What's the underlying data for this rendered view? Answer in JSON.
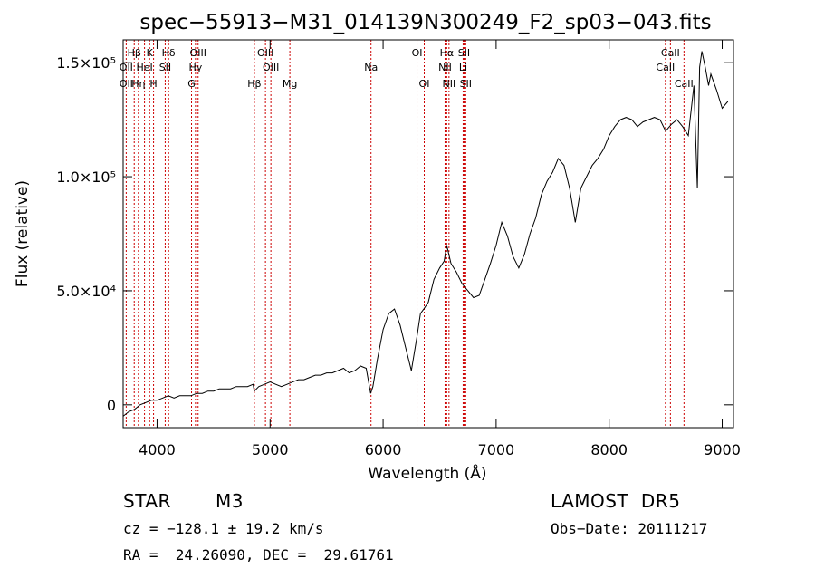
{
  "chart_data": {
    "type": "line",
    "title": "spec−55913−M31_014139N300249_F2_sp03−043.fits",
    "xlabel": "Wavelength (Å)",
    "ylabel": "Flux (relative)",
    "xlim": [
      3700,
      9100
    ],
    "ylim": [
      -10000,
      160000
    ],
    "x_ticks": [
      4000,
      5000,
      6000,
      7000,
      8000,
      9000
    ],
    "x_tick_labels": [
      "4000",
      "5000",
      "6000",
      "7000",
      "8000",
      "9000"
    ],
    "y_ticks": [
      0,
      50000,
      100000,
      150000
    ],
    "y_tick_labels": [
      "0",
      "5.0×10⁴",
      "1.0×10⁵",
      "1.5×10⁵"
    ],
    "grid": false,
    "line_color": "#000000",
    "marker_color": "#cc0000",
    "series": [
      {
        "values_x": [
          3700,
          3750,
          3800,
          3850,
          3900,
          3950,
          4000,
          4050,
          4100,
          4150,
          4200,
          4250,
          4300,
          4350,
          4400,
          4450,
          4500,
          4550,
          4600,
          4650,
          4700,
          4750,
          4800,
          4850,
          4860,
          4900,
          4950,
          5000,
          5050,
          5100,
          5150,
          5200,
          5250,
          5300,
          5350,
          5400,
          5450,
          5500,
          5550,
          5600,
          5650,
          5700,
          5750,
          5800,
          5850,
          5890,
          5910,
          5950,
          6000,
          6050,
          6100,
          6150,
          6200,
          6250,
          6300,
          6330,
          6360,
          6400,
          6450,
          6500,
          6540,
          6563,
          6600,
          6650,
          6700,
          6750,
          6800,
          6850,
          6900,
          6950,
          7000,
          7050,
          7100,
          7150,
          7200,
          7250,
          7300,
          7350,
          7400,
          7450,
          7500,
          7550,
          7600,
          7650,
          7700,
          7750,
          7800,
          7850,
          7900,
          7950,
          8000,
          8050,
          8100,
          8150,
          8200,
          8250,
          8300,
          8350,
          8400,
          8450,
          8500,
          8550,
          8600,
          8650,
          8700,
          8750,
          8780,
          8800,
          8820,
          8850,
          8880,
          8900,
          8950,
          9000,
          9050
        ],
        "values_y": [
          -5000,
          -3000,
          -2000,
          0,
          1000,
          2000,
          2000,
          3000,
          4000,
          3000,
          4000,
          4000,
          4000,
          5000,
          5000,
          6000,
          6000,
          7000,
          7000,
          7000,
          8000,
          8000,
          8000,
          9000,
          6000,
          8000,
          9000,
          10000,
          9000,
          8000,
          9000,
          10000,
          11000,
          11000,
          12000,
          13000,
          13000,
          14000,
          14000,
          15000,
          16000,
          14000,
          15000,
          17000,
          16000,
          5000,
          8000,
          20000,
          33000,
          40000,
          42000,
          35000,
          25000,
          15000,
          30000,
          40000,
          42000,
          45000,
          55000,
          60000,
          63000,
          70000,
          62000,
          58000,
          53000,
          50000,
          47000,
          48000,
          55000,
          62000,
          70000,
          80000,
          74000,
          65000,
          60000,
          66000,
          75000,
          82000,
          92000,
          98000,
          102000,
          108000,
          105000,
          95000,
          80000,
          95000,
          100000,
          105000,
          108000,
          112000,
          118000,
          122000,
          125000,
          126000,
          125000,
          122000,
          124000,
          125000,
          126000,
          125000,
          120000,
          123000,
          125000,
          122000,
          118000,
          140000,
          95000,
          148000,
          155000,
          148000,
          140000,
          145000,
          138000,
          130000,
          133000
        ]
      }
    ],
    "markers_top": [
      {
        "label": "Hδ",
        "x": 4102
      },
      {
        "label": "K",
        "x": 3934
      },
      {
        "label": "Hδ",
        "x": 4102
      },
      {
        "label": "OIII",
        "x": 4363
      },
      {
        "label": "OIII",
        "x": 4959
      },
      {
        "label": "OI",
        "x": 6300
      },
      {
        "label": "Hα",
        "x": 6563
      },
      {
        "label": "SII",
        "x": 6716
      },
      {
        "label": "CaII",
        "x": 8542
      }
    ],
    "markers": [
      {
        "row": 1,
        "label": "Hβ",
        "x": 3798
      },
      {
        "row": 1,
        "label": "K",
        "x": 3934
      },
      {
        "row": 1,
        "label": "Hδ",
        "x": 4102
      },
      {
        "row": 1,
        "label": "OIII",
        "x": 4363
      },
      {
        "row": 1,
        "label": "OIII",
        "x": 4959
      },
      {
        "row": 1,
        "label": "OI",
        "x": 6300
      },
      {
        "row": 1,
        "label": "Hα",
        "x": 6563
      },
      {
        "row": 1,
        "label": "SII",
        "x": 6716
      },
      {
        "row": 1,
        "label": "CaII",
        "x": 8542
      },
      {
        "row": 2,
        "label": "OII",
        "x": 3727
      },
      {
        "row": 2,
        "label": "HeI",
        "x": 3889
      },
      {
        "row": 2,
        "label": "SII",
        "x": 4072
      },
      {
        "row": 2,
        "label": "Hγ",
        "x": 4340
      },
      {
        "row": 2,
        "label": "OIII",
        "x": 5007
      },
      {
        "row": 2,
        "label": "Na",
        "x": 5893
      },
      {
        "row": 2,
        "label": "NII",
        "x": 6548
      },
      {
        "row": 2,
        "label": "Li",
        "x": 6708
      },
      {
        "row": 2,
        "label": "CaII",
        "x": 8498
      },
      {
        "row": 3,
        "label": "OII",
        "x": 3727
      },
      {
        "row": 3,
        "label": "Hη",
        "x": 3835
      },
      {
        "row": 3,
        "label": "H",
        "x": 3969
      },
      {
        "row": 3,
        "label": "G",
        "x": 4305
      },
      {
        "row": 3,
        "label": "Hβ",
        "x": 4861
      },
      {
        "row": 3,
        "label": "Mg",
        "x": 5175
      },
      {
        "row": 3,
        "label": "OI",
        "x": 6364
      },
      {
        "row": 3,
        "label": "NII",
        "x": 6583
      },
      {
        "row": 3,
        "label": "SII",
        "x": 6731
      },
      {
        "row": 3,
        "label": "CaII",
        "x": 8662
      }
    ],
    "marker_lines": [
      3727,
      3798,
      3835,
      3889,
      3934,
      3969,
      4072,
      4102,
      4305,
      4340,
      4363,
      4861,
      4959,
      5007,
      5175,
      5893,
      6300,
      6364,
      6548,
      6563,
      6583,
      6708,
      6716,
      6731,
      8498,
      8542,
      8662
    ]
  },
  "info": {
    "class_label": "STAR",
    "subclass_label": "M3",
    "survey_label": "LAMOST  DR5",
    "cz_text": "cz = −128.1 ± 19.2 km/s",
    "obs_date_text": "Obs−Date: 20111217",
    "coords_text": "RA =  24.26090, DEC =  29.61761"
  }
}
